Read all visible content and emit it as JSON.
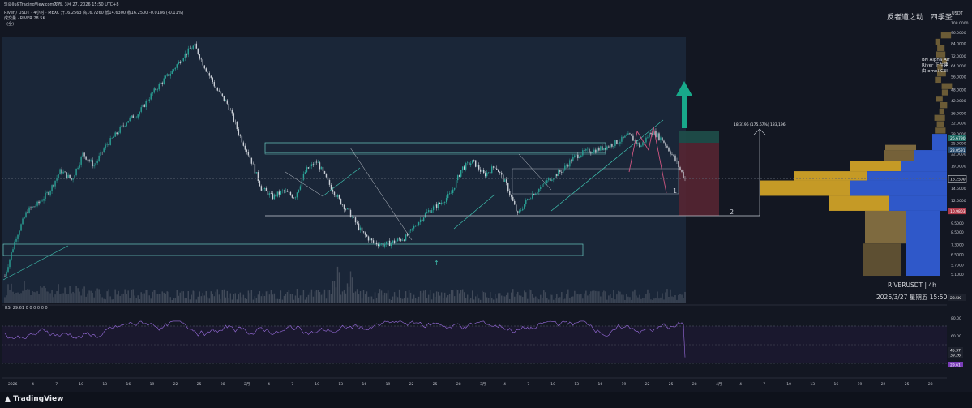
{
  "header": {
    "window_title": "Sl@llu&TradingView.com发布, 3月 27, 2026 15:50 UTC+8",
    "symbol_line": "River / USDT · 4小时 · MEXC  开16.2563 高16.7260 低14.6300 收16.2500 -0.0186 (-0.11%)",
    "volume_line": "成交量 · RIVER  28.5K",
    "sub_line": "· (全)"
  },
  "watermark": "反者道之动 | 四季圣",
  "chart_info": {
    "symbol": "RIVERUSDT | 4h",
    "datetime": "2026/3/27 星期五 15:50"
  },
  "note": {
    "line1": "BN Alpha AIr",
    "line2": "River 正在建",
    "line3": "由 omni-CEI"
  },
  "axis_unit": "USDT",
  "rsi_label": "RSI  29.61  0 0 0 0 0 0",
  "logo": "TradingView",
  "price_badges": {
    "top": "26.6790",
    "mid": "23.0591",
    "last": "16.2500",
    "low": "10.9803",
    "bottom": "28.5K"
  },
  "rsi_badges": {
    "a": "45.37",
    "b": "39.26",
    "c": "29.61"
  },
  "chart_data": {
    "type": "candlestick",
    "title": "River / USDT · 4小时 · MEXC",
    "y_scale": "log",
    "y_ticks": [
      108.0,
      96.0,
      84.0,
      72.0,
      64.0,
      56.0,
      48.0,
      42.0,
      36.0,
      32.0,
      28.0,
      25.0,
      22.0,
      19.0,
      16.25,
      14.5,
      12.5,
      11.0,
      9.5,
      8.5,
      7.3,
      6.5,
      5.7,
      5.1
    ],
    "y_tick_labels": [
      "108.0000",
      "96.0000",
      "84.0000",
      "72.0000",
      "64.0000",
      "56.0000",
      "48.0000",
      "42.0000",
      "36.0000",
      "32.0000",
      "28.0000",
      "25.0000",
      "22.0000",
      "19.0000",
      "16.2500",
      "14.5000",
      "12.5000",
      "11.0000",
      "9.5000",
      "8.5000",
      "7.3000",
      "6.5000",
      "5.7000",
      "5.1000"
    ],
    "x_tick_labels": [
      "2026",
      "4",
      "7",
      "10",
      "13",
      "16",
      "19",
      "22",
      "25",
      "28",
      "2月",
      "4",
      "7",
      "10",
      "13",
      "16",
      "19",
      "22",
      "25",
      "28",
      "3月",
      "4",
      "7",
      "10",
      "13",
      "16",
      "19",
      "22",
      "25",
      "28",
      "4月",
      "4",
      "7",
      "10",
      "13",
      "16",
      "19",
      "22",
      "25",
      "28"
    ],
    "price_path": [
      5.0,
      8.0,
      11.0,
      12.0,
      14.0,
      18.0,
      16.0,
      22.0,
      19.0,
      24.0,
      28.0,
      33.0,
      36.0,
      44.0,
      52.0,
      60.0,
      72.0,
      82.0,
      62.0,
      48.0,
      40.0,
      28.0,
      21.0,
      14.5,
      13.0,
      14.0,
      13.0,
      18.0,
      20.0,
      15.5,
      12.5,
      10.5,
      8.5,
      7.5,
      7.3,
      7.6,
      8.0,
      9.5,
      11.0,
      12.0,
      13.5,
      18.5,
      20.0,
      17.0,
      19.0,
      15.0,
      10.5,
      13.0,
      14.5,
      16.5,
      18.0,
      21.0,
      22.5,
      23.0,
      24.0,
      25.5,
      27.5,
      24.0,
      29.0,
      26.0,
      21.0,
      16.25
    ],
    "annotations": {
      "measure_label": "18.3196 (175.67%) 183,196",
      "wave_labels": [
        "1",
        "2"
      ]
    },
    "rsi_ticks": [
      "80.00",
      "60.00",
      "20.00"
    ],
    "rsi_last": 29.61
  }
}
